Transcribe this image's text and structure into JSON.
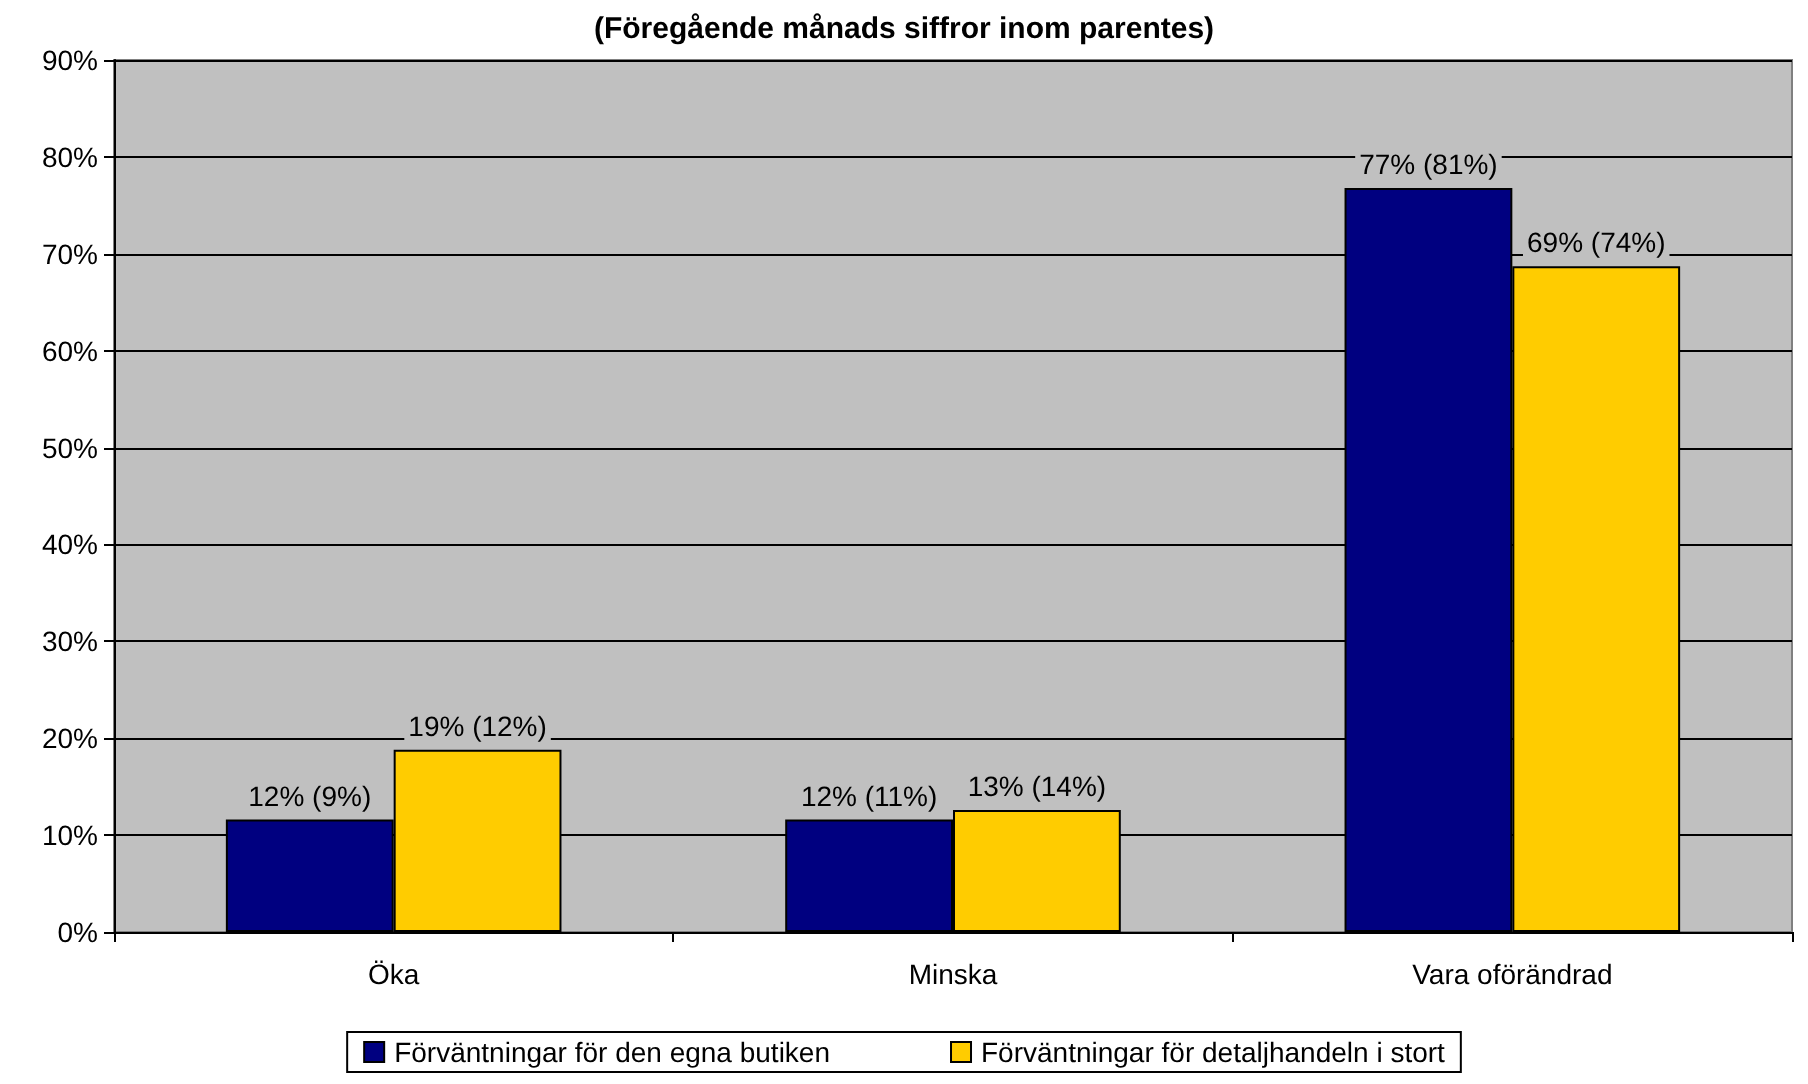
{
  "chart_data": {
    "type": "bar",
    "title": "(Föregående månads siffror inom parentes)",
    "categories": [
      "Öka",
      "Minska",
      "Vara oförändrad"
    ],
    "series": [
      {
        "name": "Förväntningar för den egna butiken",
        "color": "#000080",
        "values": [
          11.6,
          11.6,
          76.8
        ],
        "value_labels": [
          "12% (9%)",
          "12% (11%)",
          "77% (81%)"
        ]
      },
      {
        "name": "Förväntningar för detaljhandeln i stort",
        "color": "#ffcc00",
        "values": [
          18.8,
          12.6,
          68.7
        ],
        "value_labels": [
          "19% (12%)",
          "13% (14%)",
          "69% (74%)"
        ]
      }
    ],
    "ylim": [
      0,
      90
    ],
    "yticks": [
      {
        "value": 0,
        "label": "0%"
      },
      {
        "value": 10,
        "label": "10%"
      },
      {
        "value": 20,
        "label": "20%"
      },
      {
        "value": 30,
        "label": "30%"
      },
      {
        "value": 40,
        "label": "40%"
      },
      {
        "value": 50,
        "label": "50%"
      },
      {
        "value": 60,
        "label": "60%"
      },
      {
        "value": 70,
        "label": "70%"
      },
      {
        "value": 80,
        "label": "80%"
      },
      {
        "value": 90,
        "label": "90%"
      }
    ],
    "grid": "y",
    "legend": "bottom"
  }
}
